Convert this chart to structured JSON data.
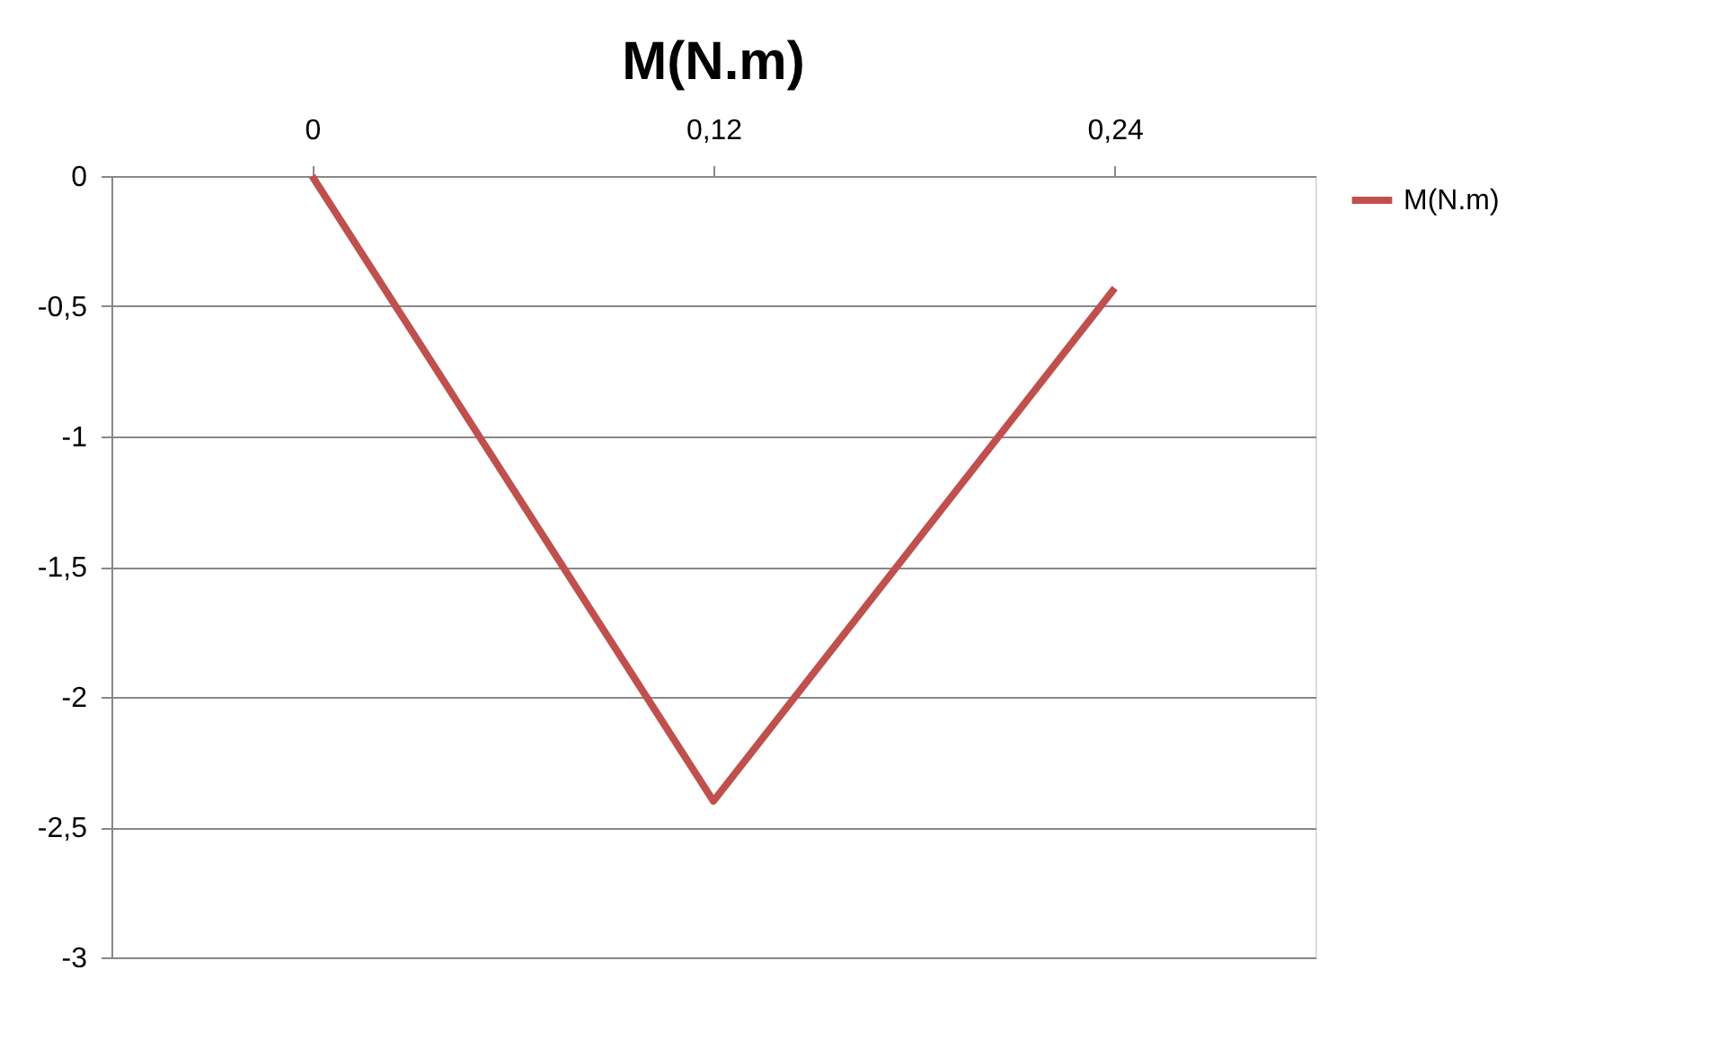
{
  "chart_data": {
    "type": "line",
    "title": "M(N.m)",
    "categories": [
      "0",
      "0,12",
      "0,24"
    ],
    "series": [
      {
        "name": "M(N.m)",
        "color": "#c0504d",
        "values": [
          0,
          -2.4,
          -0.43
        ]
      }
    ],
    "ylim": [
      -3,
      0
    ],
    "yticks": [
      0,
      {
        "value": -0.5,
        "label": "-0,5"
      },
      -1,
      {
        "value": -1.5,
        "label": "-1,5"
      },
      -2,
      {
        "value": -2.5,
        "label": "-2,5"
      },
      -3
    ],
    "grid": "y",
    "legend": "right",
    "marker": "none",
    "line_style": "solid"
  }
}
